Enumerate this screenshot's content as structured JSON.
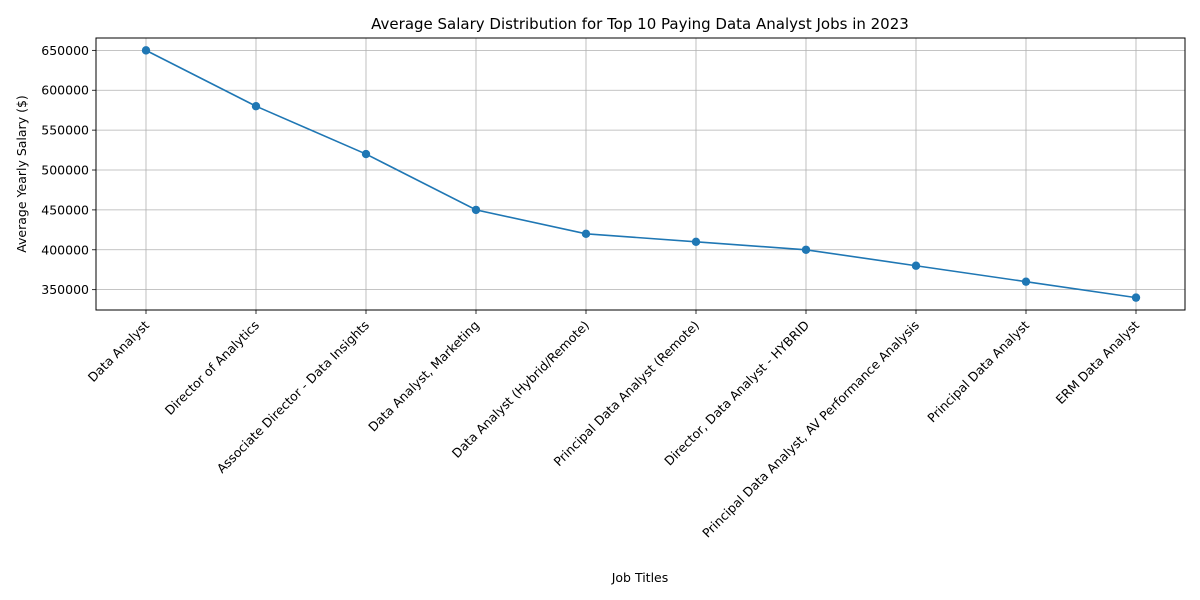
{
  "chart_data": {
    "type": "line",
    "title": "Average Salary Distribution for Top 10 Paying Data Analyst Jobs in 2023",
    "xlabel": "Job Titles",
    "ylabel": "Average Yearly Salary ($)",
    "categories": [
      "Data Analyst",
      "Director of Analytics",
      "Associate Director - Data Insights",
      "Data Analyst, Marketing",
      "Data Analyst (Hybrid/Remote)",
      "Principal Data Analyst (Remote)",
      "Director, Data Analyst - HYBRID",
      "Principal Data Analyst, AV Performance Analysis",
      "Principal Data Analyst",
      "ERM Data Analyst"
    ],
    "values": [
      650000,
      580000,
      520000,
      450000,
      420000,
      410000,
      400000,
      380000,
      360000,
      340000
    ],
    "yticks": [
      350000,
      400000,
      450000,
      500000,
      550000,
      600000,
      650000
    ],
    "ylim": [
      324500,
      665500
    ],
    "grid": true,
    "line_color": "#1f77b4",
    "marker": "circle"
  }
}
